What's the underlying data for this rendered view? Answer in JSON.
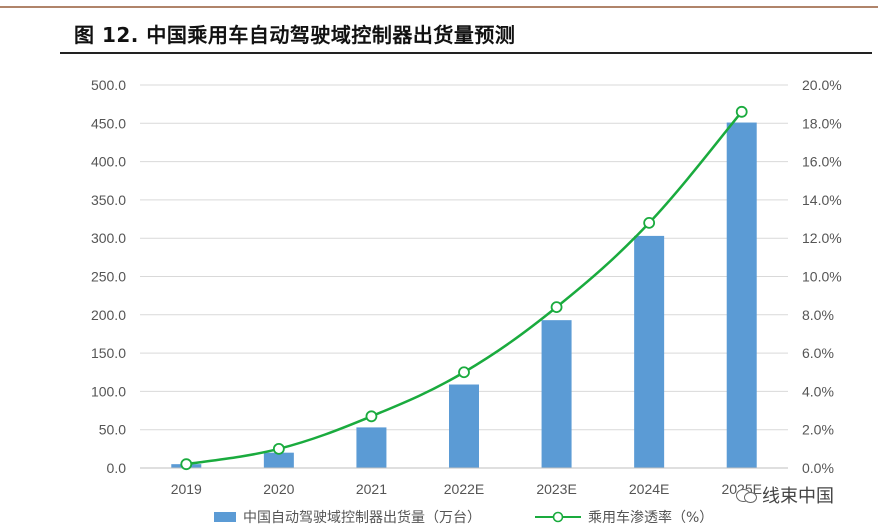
{
  "title": "图 12. 中国乘用车自动驾驶域控制器出货量预测",
  "watermark": {
    "text": "线束中国",
    "icon": "wechat-icon"
  },
  "colors": {
    "bar": "#5b9bd5",
    "line": "#1aab3e",
    "grid": "#d9d9d9",
    "tick_text": "#555555"
  },
  "chart_data": {
    "type": "bar",
    "categories": [
      "2019",
      "2020",
      "2021",
      "2022E",
      "2023E",
      "2024E",
      "2025E"
    ],
    "series": [
      {
        "name": "中国自动驾驶域控制器出货量（万台）",
        "type": "bar",
        "axis": "left",
        "values": [
          5,
          20,
          53,
          109,
          193,
          303,
          451
        ]
      },
      {
        "name": "乘用车渗透率（%）",
        "type": "line",
        "axis": "right",
        "values": [
          0.2,
          1.0,
          2.7,
          5.0,
          8.4,
          12.8,
          18.6
        ]
      }
    ],
    "y_left": {
      "min": 0,
      "max": 500,
      "step": 50,
      "ticks": [
        "0.0",
        "50.0",
        "100.0",
        "150.0",
        "200.0",
        "250.0",
        "300.0",
        "350.0",
        "400.0",
        "450.0",
        "500.0"
      ]
    },
    "y_right": {
      "min": 0,
      "max": 20,
      "step": 2,
      "ticks": [
        "0.0%",
        "2.0%",
        "4.0%",
        "6.0%",
        "8.0%",
        "10.0%",
        "12.0%",
        "14.0%",
        "16.0%",
        "18.0%",
        "20.0%"
      ]
    },
    "grid": true,
    "legend": "bottom-center"
  }
}
